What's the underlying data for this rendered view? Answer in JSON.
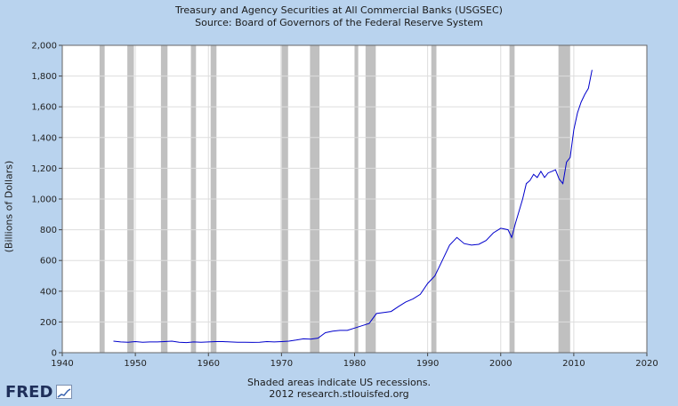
{
  "chart_data": {
    "type": "line",
    "title": "Treasury and Agency Securities at All Commercial Banks (USGSEC)",
    "subtitle": "Source: Board of Governors of the Federal Reserve System",
    "ylabel": "(Billions of Dollars)",
    "xlabel": "",
    "xlim": [
      1940,
      2020
    ],
    "ylim": [
      0,
      2000
    ],
    "x_ticks": [
      "1940",
      "1950",
      "1960",
      "1970",
      "1980",
      "1990",
      "2000",
      "2010",
      "2020"
    ],
    "y_ticks": [
      "0",
      "200",
      "400",
      "600",
      "800",
      "1,000",
      "1,200",
      "1,400",
      "1,600",
      "1,800",
      "2,000"
    ],
    "grid": true,
    "line_color": "#0000cc",
    "recession_color": "#c0c0c0",
    "recessions": [
      [
        1945.1,
        1945.8
      ],
      [
        1948.9,
        1949.8
      ],
      [
        1953.5,
        1954.4
      ],
      [
        1957.6,
        1958.3
      ],
      [
        1960.3,
        1961.1
      ],
      [
        1969.9,
        1970.9
      ],
      [
        1973.9,
        1975.2
      ],
      [
        1980.0,
        1980.5
      ],
      [
        1981.5,
        1982.9
      ],
      [
        1990.5,
        1991.2
      ],
      [
        2001.2,
        2001.9
      ],
      [
        2007.9,
        2009.5
      ]
    ],
    "series": [
      {
        "x": [
          1947.0,
          1948.0,
          1949.0,
          1950.0,
          1951.0,
          1952.0,
          1953.0,
          1954.0,
          1955.0,
          1956.0,
          1957.0,
          1958.0,
          1959.0,
          1960.0,
          1961.0,
          1962.0,
          1963.0,
          1964.0,
          1965.0,
          1966.0,
          1967.0,
          1968.0,
          1969.0,
          1970.0,
          1971.0,
          1972.0,
          1973.0,
          1974.0,
          1975.0,
          1976.0,
          1977.0,
          1978.0,
          1979.0,
          1980.0,
          1981.0,
          1982.0,
          1983.0,
          1984.0,
          1985.0,
          1986.0,
          1987.0,
          1988.0,
          1989.0,
          1990.0,
          1991.0,
          1992.0,
          1993.0,
          1994.0,
          1995.0,
          1996.0,
          1997.0,
          1998.0,
          1999.0,
          2000.0,
          2001.0,
          2001.5,
          2002.0,
          2003.0,
          2003.5,
          2004.0,
          2004.5,
          2005.0,
          2005.5,
          2006.0,
          2006.5,
          2007.0,
          2007.5,
          2008.0,
          2008.5,
          2009.0,
          2009.5,
          2010.0,
          2010.5,
          2011.0,
          2011.5,
          2012.0,
          2012.5
        ],
        "y": [
          75,
          70,
          68,
          72,
          68,
          70,
          70,
          72,
          75,
          68,
          66,
          70,
          68,
          70,
          72,
          72,
          70,
          68,
          68,
          67,
          68,
          72,
          70,
          72,
          75,
          82,
          90,
          88,
          95,
          130,
          140,
          145,
          145,
          160,
          175,
          190,
          255,
          262,
          268,
          300,
          330,
          350,
          380,
          450,
          500,
          600,
          700,
          750,
          710,
          700,
          705,
          730,
          780,
          810,
          800,
          750,
          840,
          1000,
          1100,
          1120,
          1160,
          1140,
          1180,
          1140,
          1170,
          1180,
          1190,
          1130,
          1100,
          1240,
          1270,
          1450,
          1560,
          1630,
          1680,
          1720,
          1840
        ]
      }
    ]
  },
  "footnote": "Shaded areas indicate US recessions.",
  "credit": "2012 research.stlouisfed.org",
  "logo": {
    "text": "FRED",
    "icon": "chart-icon"
  }
}
